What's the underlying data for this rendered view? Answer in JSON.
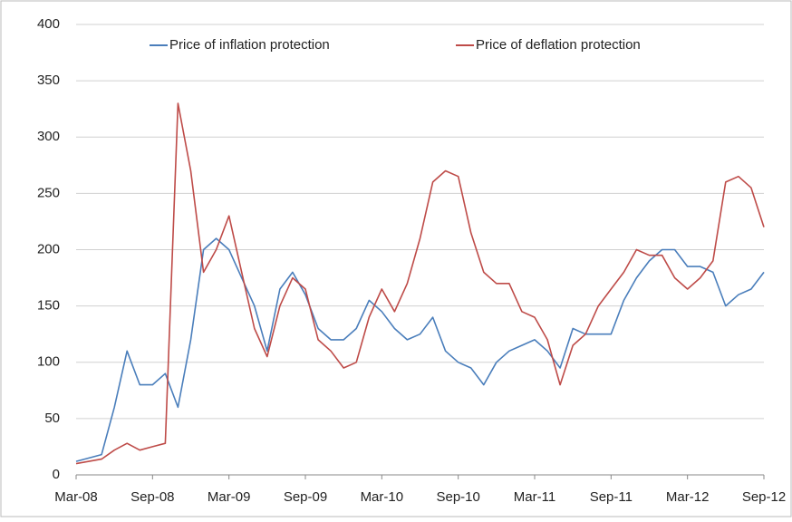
{
  "chart_data": {
    "type": "line",
    "categories": [
      "Mar-08",
      null,
      null,
      null,
      null,
      null,
      "Sep-08",
      null,
      null,
      null,
      null,
      null,
      "Mar-09",
      null,
      null,
      null,
      null,
      null,
      "Sep-09",
      null,
      null,
      null,
      null,
      null,
      "Mar-10",
      null,
      null,
      null,
      null,
      null,
      "Sep-10",
      null,
      null,
      null,
      null,
      null,
      "Mar-11",
      null,
      null,
      null,
      null,
      null,
      "Sep-11",
      null,
      null,
      null,
      null,
      null,
      "Mar-12",
      null,
      null,
      null,
      null,
      null,
      "Sep-12"
    ],
    "series": [
      {
        "name": "Price of inflation protection",
        "color": "#4a7ebb",
        "values": [
          12,
          15,
          18,
          60,
          110,
          80,
          80,
          90,
          60,
          120,
          200,
          210,
          200,
          175,
          150,
          110,
          165,
          180,
          160,
          130,
          120,
          120,
          130,
          155,
          145,
          130,
          120,
          125,
          140,
          110,
          100,
          95,
          80,
          100,
          110,
          115,
          120,
          110,
          95,
          130,
          125,
          125,
          125,
          155,
          175,
          190,
          200,
          200,
          185,
          185,
          180,
          150,
          160,
          165,
          180
        ]
      },
      {
        "name": "Price of deflation protection",
        "color": "#be4b48",
        "values": [
          10,
          12,
          14,
          22,
          28,
          22,
          25,
          28,
          330,
          270,
          180,
          200,
          230,
          180,
          130,
          105,
          150,
          175,
          165,
          120,
          110,
          95,
          100,
          140,
          165,
          145,
          170,
          210,
          260,
          270,
          265,
          215,
          180,
          170,
          170,
          145,
          140,
          120,
          80,
          115,
          125,
          150,
          165,
          180,
          200,
          195,
          195,
          175,
          165,
          175,
          190,
          260,
          265,
          255,
          220
        ]
      }
    ],
    "ylim": [
      0,
      400
    ],
    "yticks": [
      0,
      50,
      100,
      150,
      200,
      250,
      300,
      350,
      400
    ],
    "grid": true,
    "legend": "top"
  }
}
